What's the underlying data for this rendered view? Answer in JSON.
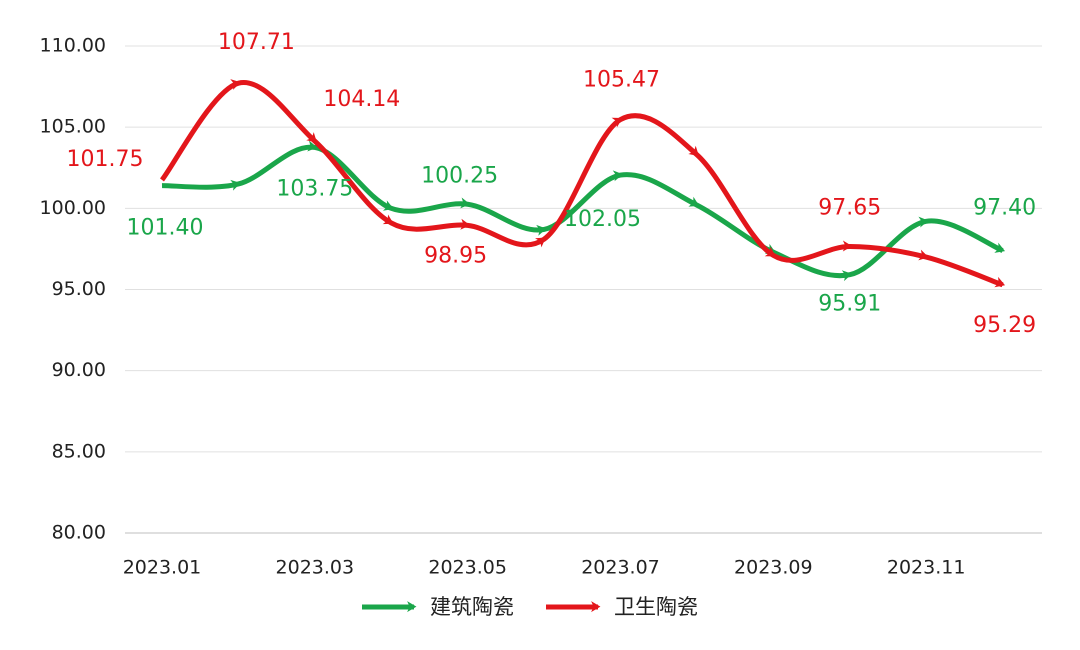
{
  "chart_data": {
    "type": "line",
    "categories": [
      "2023.01",
      null,
      "2023.03",
      null,
      "2023.05",
      null,
      "2023.07",
      null,
      "2023.09",
      null,
      "2023.11",
      null
    ],
    "series": [
      {
        "name": "建筑陶瓷",
        "color": "#1aa64a",
        "values": [
          101.4,
          101.5,
          103.75,
          100.0,
          100.25,
          98.7,
          102.05,
          100.2,
          97.3,
          95.91,
          99.2,
          97.4
        ],
        "value_labels": [
          "101.40",
          null,
          "103.75",
          null,
          "100.25",
          null,
          "102.05",
          null,
          null,
          "95.91",
          null,
          "97.40"
        ]
      },
      {
        "name": "卫生陶瓷",
        "color": "#e3161b",
        "values": [
          101.75,
          107.71,
          104.14,
          99.1,
          98.95,
          98.1,
          105.47,
          103.3,
          97.1,
          97.65,
          97.0,
          95.29
        ],
        "value_labels": [
          "101.75",
          "107.71",
          "104.14",
          null,
          "98.95",
          null,
          "105.47",
          null,
          null,
          "97.65",
          null,
          "95.29"
        ]
      }
    ],
    "ylim": [
      80,
      110
    ],
    "yticks": [
      {
        "value": 80,
        "label": "80.00"
      },
      {
        "value": 85,
        "label": "85.00"
      },
      {
        "value": 90,
        "label": "90.00"
      },
      {
        "value": 95,
        "label": "95.00"
      },
      {
        "value": 100,
        "label": "100.00"
      },
      {
        "value": 105,
        "label": "105.00"
      },
      {
        "value": 110,
        "label": "110.00"
      }
    ],
    "grid": true
  }
}
